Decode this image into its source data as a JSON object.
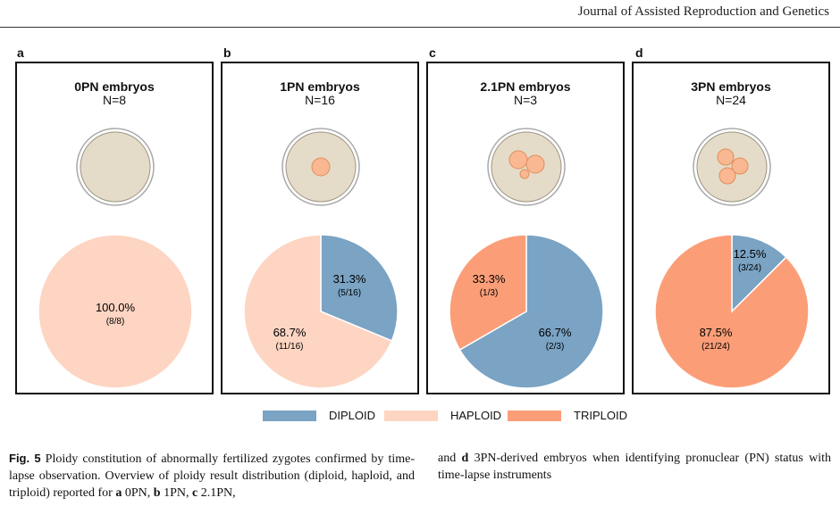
{
  "header": {
    "journal": "Journal of Assisted Reproduction and Genetics"
  },
  "colors": {
    "diploid": "#7aa3c4",
    "haploid": "#fdd5c2",
    "triploid": "#fb9e78",
    "cell_bg": "#e4dcc8",
    "pronucleus": "#f9b891"
  },
  "panels": [
    {
      "letter": "a",
      "title": "0PN embryos",
      "n": "N=8",
      "pronuclei_icon": "0-pronuclei",
      "labels": [
        {
          "pct": "100.0%",
          "frac": "(8/8)"
        }
      ]
    },
    {
      "letter": "b",
      "title": "1PN embryos",
      "n": "N=16",
      "pronuclei_icon": "1-pronucleus",
      "labels": [
        {
          "pct": "31.3%",
          "frac": "(5/16)"
        },
        {
          "pct": "68.7%",
          "frac": "(11/16)"
        }
      ]
    },
    {
      "letter": "c",
      "title": "2.1PN embryos",
      "n": "N=3",
      "pronuclei_icon": "3-pronuclei-one-small",
      "labels": [
        {
          "pct": "66.7%",
          "frac": "(2/3)"
        },
        {
          "pct": "33.3%",
          "frac": "(1/3)"
        }
      ]
    },
    {
      "letter": "d",
      "title": "3PN embryos",
      "n": "N=24",
      "pronuclei_icon": "3-pronuclei",
      "labels": [
        {
          "pct": "12.5%",
          "frac": "(3/24)"
        },
        {
          "pct": "87.5%",
          "frac": "(21/24)"
        }
      ]
    }
  ],
  "legend": [
    {
      "label": "DIPLOID",
      "color": "#7aa3c4"
    },
    {
      "label": "HAPLOID",
      "color": "#fdd5c2"
    },
    {
      "label": "TRIPLOID",
      "color": "#fb9e78"
    }
  ],
  "caption": {
    "fig": "Fig. 5",
    "left_text": "Ploidy constitution of abnormally fertilized zygotes confirmed by time-lapse observation. Overview of ploidy result distribution (diploid, haploid, and triploid) reported for",
    "a": "a",
    "a_text": "0PN,",
    "b": "b",
    "b_text": "1PN,",
    "c": "c",
    "c_text": "2.1PN,",
    "d_pre": "and",
    "d": "d",
    "right_text": "3PN-derived embryos when identifying pronuclear (PN) status with time-lapse instruments"
  },
  "chart_data": [
    {
      "type": "pie",
      "title": "0PN embryos",
      "subtitle": "N=8",
      "categories": [
        "DIPLOID",
        "HAPLOID",
        "TRIPLOID"
      ],
      "values": [
        0,
        8,
        0
      ],
      "percent": [
        0,
        100.0,
        0
      ]
    },
    {
      "type": "pie",
      "title": "1PN embryos",
      "subtitle": "N=16",
      "categories": [
        "DIPLOID",
        "HAPLOID",
        "TRIPLOID"
      ],
      "values": [
        5,
        11,
        0
      ],
      "percent": [
        31.3,
        68.7,
        0
      ]
    },
    {
      "type": "pie",
      "title": "2.1PN embryos",
      "subtitle": "N=3",
      "categories": [
        "DIPLOID",
        "HAPLOID",
        "TRIPLOID"
      ],
      "values": [
        2,
        0,
        1
      ],
      "percent": [
        66.7,
        0,
        33.3
      ]
    },
    {
      "type": "pie",
      "title": "3PN embryos",
      "subtitle": "N=24",
      "categories": [
        "DIPLOID",
        "HAPLOID",
        "TRIPLOID"
      ],
      "values": [
        3,
        0,
        21
      ],
      "percent": [
        12.5,
        0,
        87.5
      ]
    }
  ]
}
